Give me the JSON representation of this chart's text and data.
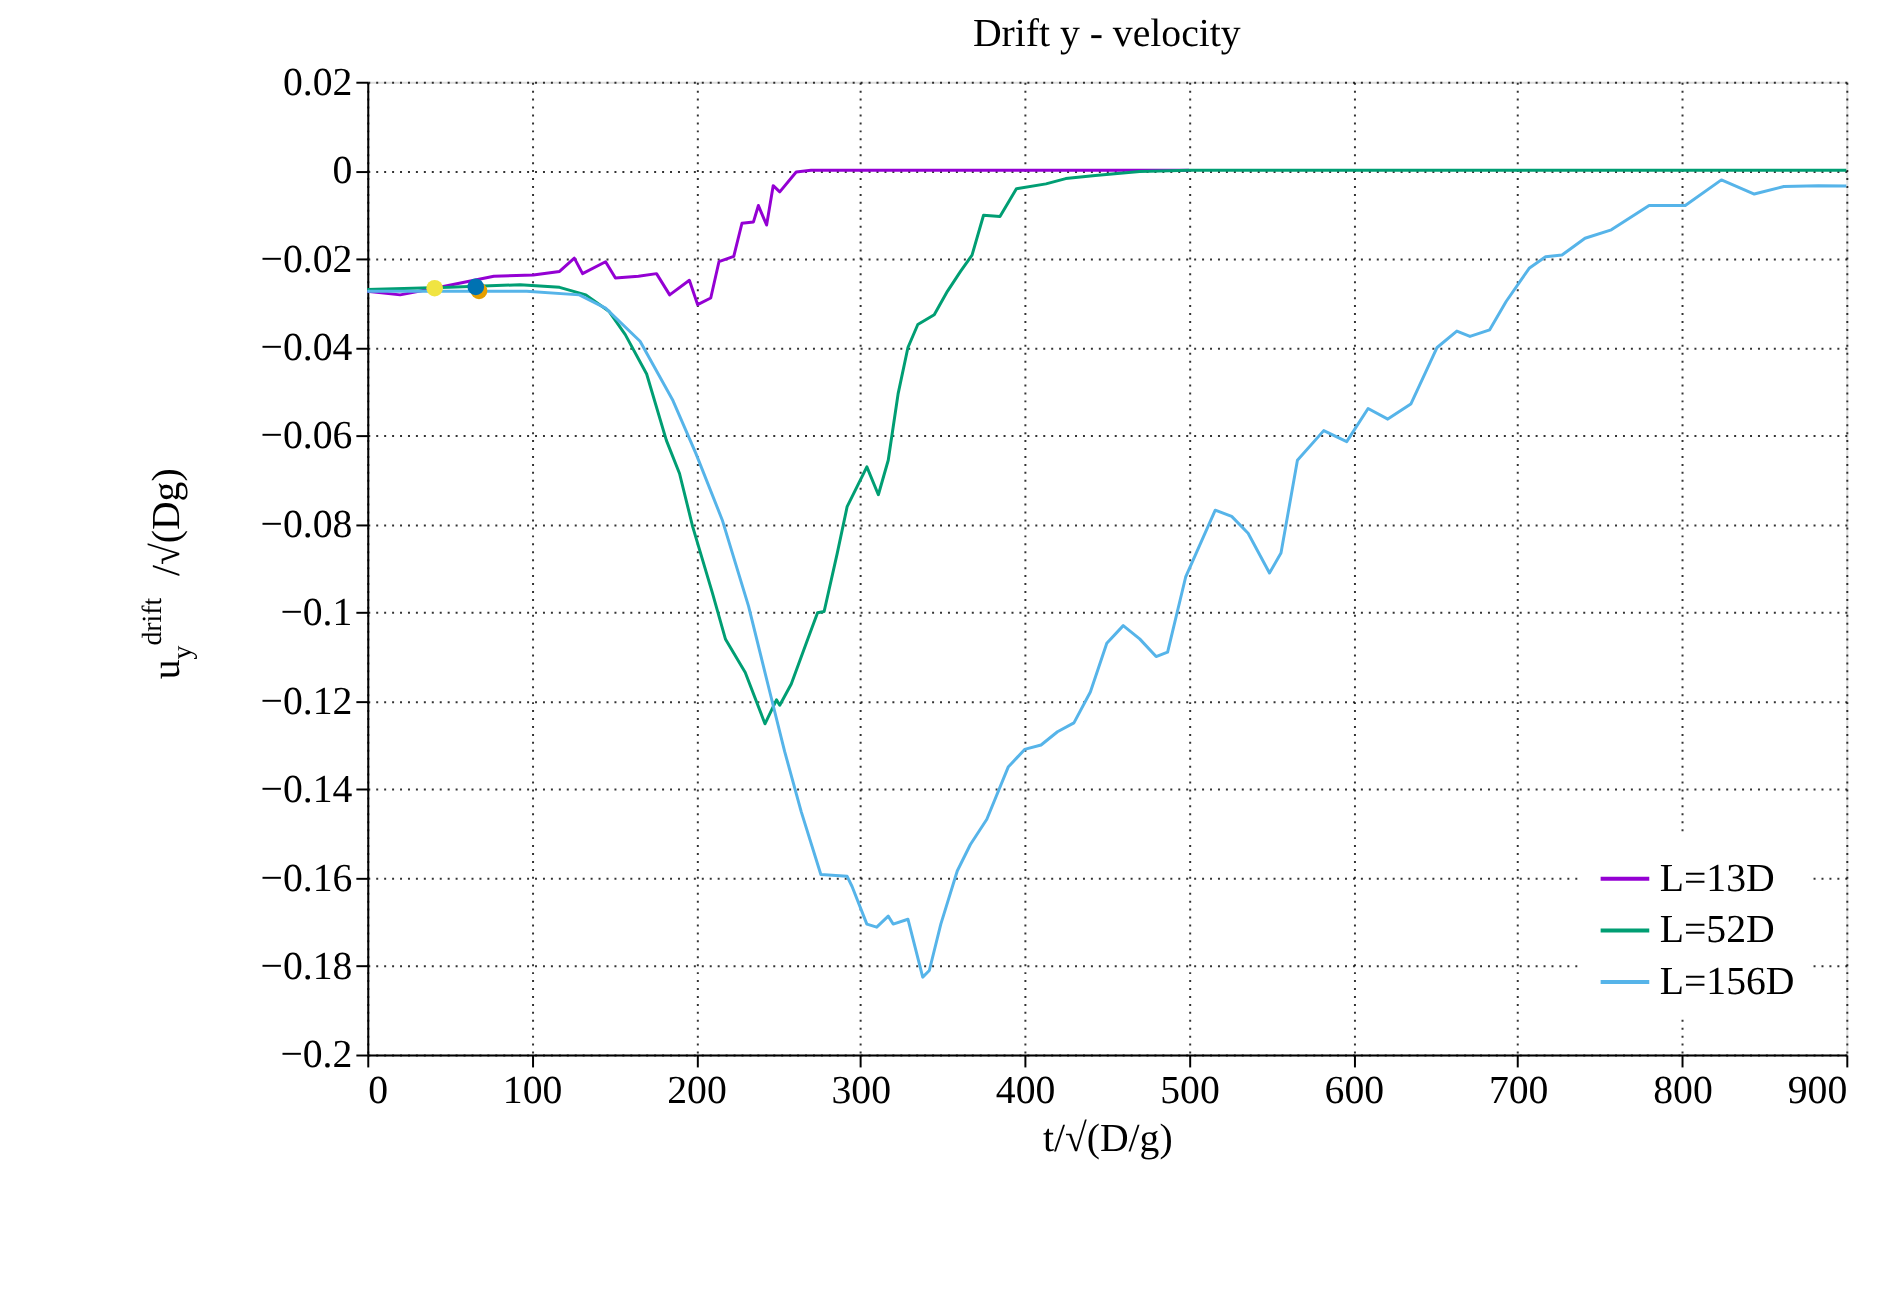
{
  "chart_data": {
    "type": "line",
    "title": "Drift y - velocity",
    "xlabel": "t/√(D/g)",
    "ylabel": "u$_{y}$$^{drift}$/√(Dg)",
    "xlim": [
      0,
      900
    ],
    "xticks": [
      0,
      100,
      200,
      300,
      400,
      500,
      600,
      700,
      800,
      900
    ],
    "ylim": [
      -0.2,
      0.02
    ],
    "yticks": [
      -0.2,
      -0.18,
      -0.16,
      -0.14,
      -0.12,
      -0.1,
      -0.08,
      -0.06,
      -0.04,
      -0.02,
      0,
      0.02
    ],
    "grid": true,
    "legend": "bottom right",
    "line_style": "solid",
    "marker": "none",
    "series": [
      {
        "name": "L=13D",
        "color": "#9400d3",
        "x": [
          0,
          20,
          41,
          77,
          101,
          117,
          126,
          131,
          145,
          151,
          165,
          176,
          184,
          196,
          201,
          209,
          214,
          223,
          228,
          235,
          238,
          243,
          247,
          251,
          261,
          270,
          300,
          400,
          500
        ],
        "values": [
          -0.0274,
          -0.0282,
          -0.0267,
          -0.024,
          -0.0237,
          -0.0229,
          -0.0199,
          -0.0234,
          -0.0207,
          -0.0244,
          -0.024,
          -0.0234,
          -0.0282,
          -0.0249,
          -0.0304,
          -0.0289,
          -0.0207,
          -0.0195,
          -0.012,
          -0.0117,
          -0.008,
          -0.0124,
          -0.0035,
          -0.0049,
          -0.0004,
          0,
          0,
          0,
          0
        ]
      },
      {
        "name": "L=52D",
        "color": "#009e73",
        "x": [
          0,
          50,
          93,
          117,
          133,
          147,
          157,
          170,
          182,
          190,
          198,
          210,
          218,
          230,
          242,
          249,
          251,
          258,
          268,
          274,
          278,
          286,
          292,
          304,
          311,
          317,
          323,
          329,
          335,
          345,
          353,
          361,
          368,
          375,
          385,
          395,
          413,
          425,
          443,
          470,
          500,
          600,
          700,
          800,
          900
        ],
        "values": [
          -0.027,
          -0.0265,
          -0.0259,
          -0.0265,
          -0.0282,
          -0.0319,
          -0.0372,
          -0.0461,
          -0.0611,
          -0.0686,
          -0.0806,
          -0.0956,
          -0.1061,
          -0.1136,
          -0.1252,
          -0.1198,
          -0.121,
          -0.1162,
          -0.1061,
          -0.1001,
          -0.0998,
          -0.0866,
          -0.0761,
          -0.0671,
          -0.0734,
          -0.0656,
          -0.0506,
          -0.0401,
          -0.0349,
          -0.0327,
          -0.0274,
          -0.0229,
          -0.0192,
          -0.0102,
          -0.0105,
          -0.0042,
          -0.0031,
          -0.0019,
          -0.0012,
          -0.0003,
          0,
          0,
          0,
          0,
          0
        ]
      },
      {
        "name": "L=156D",
        "color": "#56b4e9",
        "x": [
          0,
          45,
          97,
          129,
          145,
          166,
          186,
          200,
          216,
          232,
          244,
          254,
          264,
          276,
          292,
          295,
          304,
          310,
          317,
          320,
          329,
          338,
          342,
          349,
          359,
          367,
          377,
          390,
          400,
          410,
          420,
          430,
          440,
          450,
          460,
          470,
          480,
          487,
          498,
          516,
          526,
          536,
          549,
          556,
          566,
          582,
          596,
          609,
          621,
          635,
          651,
          663,
          671,
          683,
          693,
          707,
          717,
          727,
          741,
          757,
          780,
          802,
          824,
          844,
          862,
          883,
          900
        ],
        "values": [
          -0.0274,
          -0.0274,
          -0.0274,
          -0.0282,
          -0.0312,
          -0.0387,
          -0.0521,
          -0.0641,
          -0.0791,
          -0.0986,
          -0.1166,
          -0.1315,
          -0.145,
          -0.1593,
          -0.1597,
          -0.162,
          -0.1705,
          -0.1712,
          -0.1687,
          -0.1705,
          -0.1694,
          -0.1825,
          -0.181,
          -0.1705,
          -0.1585,
          -0.1525,
          -0.1468,
          -0.135,
          -0.131,
          -0.13,
          -0.127,
          -0.125,
          -0.118,
          -0.107,
          -0.103,
          -0.106,
          -0.11,
          -0.109,
          -0.092,
          -0.0769,
          -0.0783,
          -0.0821,
          -0.0911,
          -0.0866,
          -0.0656,
          -0.0589,
          -0.0614,
          -0.0539,
          -0.0563,
          -0.0529,
          -0.0401,
          -0.0364,
          -0.0376,
          -0.0361,
          -0.0297,
          -0.0222,
          -0.0196,
          -0.0192,
          -0.0154,
          -0.0135,
          -0.008,
          -0.008,
          -0.0022,
          -0.0054,
          -0.0037,
          -0.0035,
          -0.0036
        ]
      },
      {
        "type": "scatter",
        "marker": "circle",
        "x": [
          41,
          68,
          66
        ],
        "values": [
          -0.0267,
          -0.0273,
          -0.0264
        ],
        "colors": [
          "#f0e442",
          "#e69f00",
          "#0072b2"
        ]
      }
    ]
  }
}
